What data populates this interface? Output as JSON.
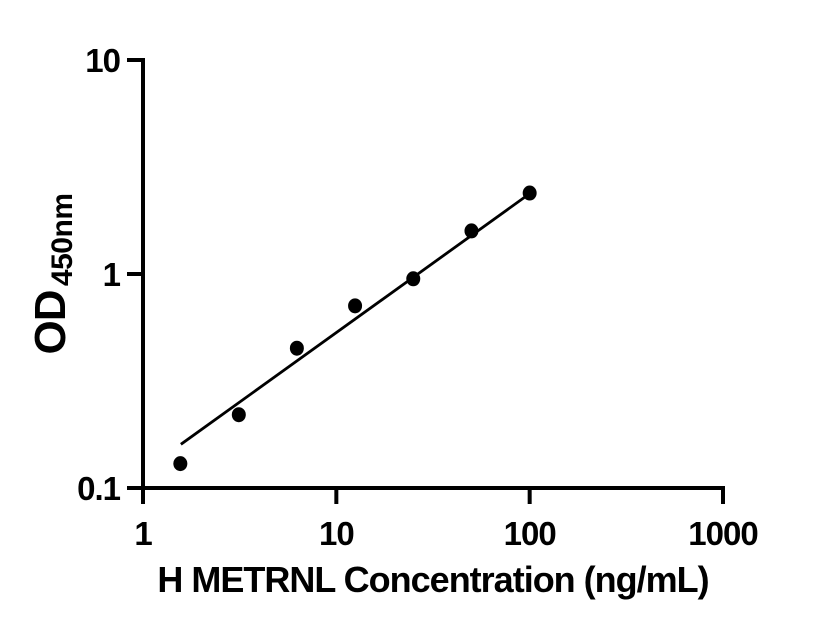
{
  "page": {
    "background": "#ffffff",
    "ink_color": "#000000"
  },
  "chart_data": {
    "type": "scatter",
    "title": "",
    "xlabel": "H METRNL Concentration (ng/mL)",
    "ylabel_main": "OD",
    "ylabel_sub": "450nm",
    "xscale": "log",
    "yscale": "log",
    "xlim": [
      1,
      1000
    ],
    "ylim": [
      0.1,
      10
    ],
    "grid": false,
    "legend": "none",
    "x_ticks": [
      {
        "value": 1,
        "label": "1"
      },
      {
        "value": 10,
        "label": "10"
      },
      {
        "value": 100,
        "label": "100"
      },
      {
        "value": 1000,
        "label": "1000"
      }
    ],
    "y_ticks": [
      {
        "value": 0.1,
        "label": "0.1"
      },
      {
        "value": 1,
        "label": "1"
      },
      {
        "value": 10,
        "label": "10"
      }
    ],
    "series": [
      {
        "name": "standard-points",
        "type": "scatter",
        "marker": "circle-filled",
        "color": "#000000",
        "points": [
          {
            "x": 1.56,
            "y": 0.13
          },
          {
            "x": 3.13,
            "y": 0.22
          },
          {
            "x": 6.25,
            "y": 0.45
          },
          {
            "x": 12.5,
            "y": 0.71
          },
          {
            "x": 25,
            "y": 0.95
          },
          {
            "x": 50,
            "y": 1.59
          },
          {
            "x": 100,
            "y": 2.39
          }
        ]
      },
      {
        "name": "fit-line",
        "type": "line",
        "color": "#000000",
        "points": [
          {
            "x": 1.57,
            "y": 0.16
          },
          {
            "x": 101,
            "y": 2.39
          }
        ]
      }
    ]
  }
}
